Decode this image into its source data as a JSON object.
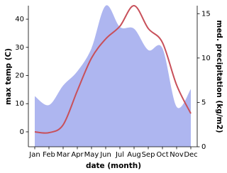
{
  "chart_data": {
    "type": "line",
    "categories": [
      "Jan",
      "Feb",
      "Mar",
      "Apr",
      "May",
      "Jun",
      "Jul",
      "Aug",
      "Sep",
      "Oct",
      "Nov",
      "Dec"
    ],
    "xlabel": "date (month)",
    "ylabel": "max temp (C)",
    "y2label": "med. precipitation (kg/m2)",
    "ylim": [
      -5.3,
      44.8
    ],
    "yticks": [
      0,
      10,
      20,
      30,
      40
    ],
    "y2lim": [
      0,
      15.9
    ],
    "y2ticks": [
      0,
      5,
      10,
      15
    ],
    "series": [
      {
        "name": "max temp",
        "color": "#c8505a",
        "values": [
          0,
          -0.3,
          2.5,
          14.6,
          26.2,
          33,
          37.5,
          44.8,
          36.7,
          31.7,
          16.6,
          6.5
        ]
      },
      {
        "name": "med. precipitation",
        "color": "#aeb6f0",
        "axis": "y2",
        "values": [
          5.7,
          4.7,
          6.9,
          8.5,
          11.1,
          15.9,
          13.5,
          13.3,
          10.9,
          11.1,
          4.5,
          6.5
        ]
      }
    ]
  }
}
